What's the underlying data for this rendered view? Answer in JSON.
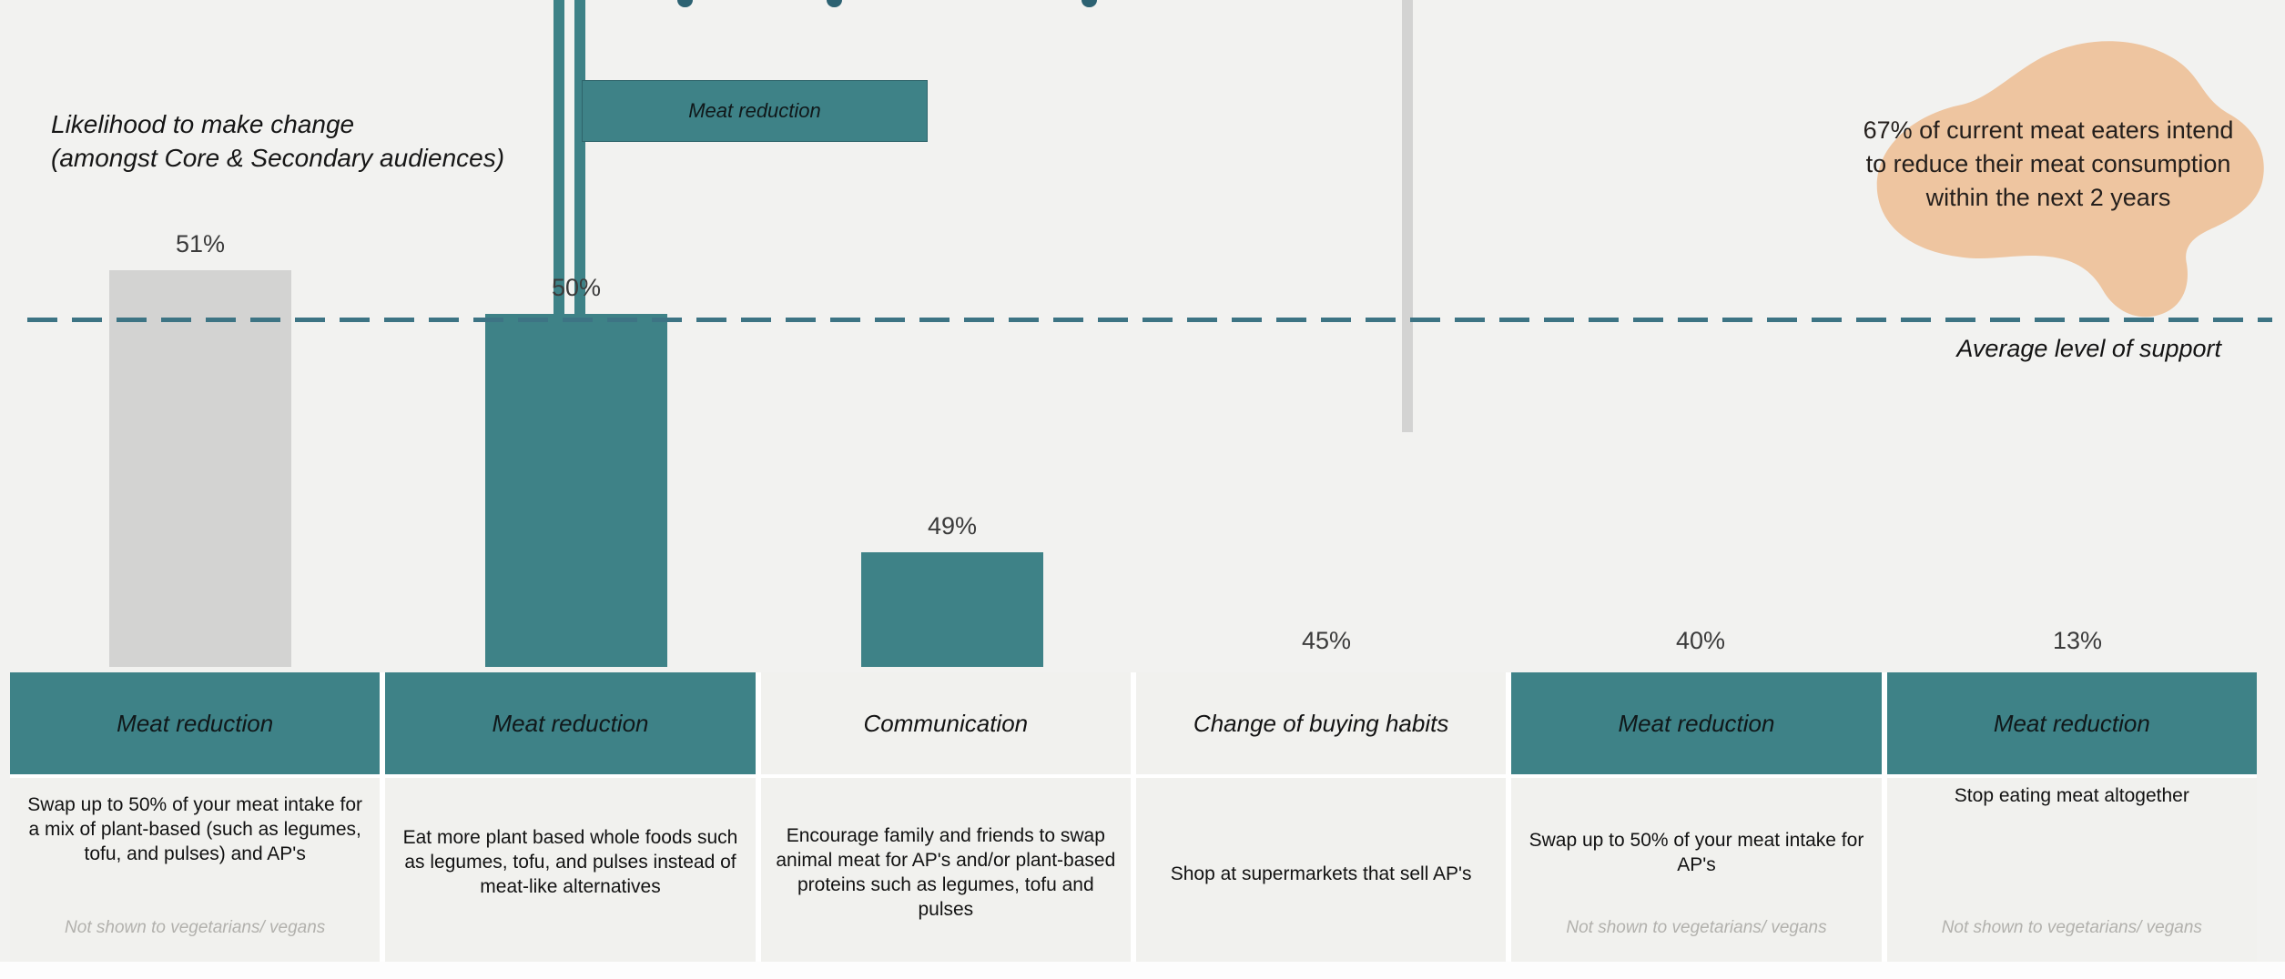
{
  "colors": {
    "page_bg": "#f2f2f0",
    "teal": "#3e8287",
    "bar_gray": "#d3d3d2",
    "blob_peach": "#eec5a0",
    "dash_line": "#3d7484",
    "title_remnant": "#2d6272"
  },
  "subtitle": {
    "line1": "Likelihood to make change",
    "line2": "(amongst Core & Secondary audiences)"
  },
  "legend": {
    "label": "Meat reduction"
  },
  "callout": {
    "text": "67% of current meat eaters intend to reduce their meat consumption within the next 2 years"
  },
  "average_line": {
    "label": "Average level of support",
    "value_pct": 40
  },
  "chart_data": {
    "type": "bar",
    "title": "Likelihood to make change (amongst Core & Secondary audiences)",
    "categories": [
      "Meat reduction",
      "Meat reduction",
      "Communication",
      "Change of buying habits",
      "Meat reduction",
      "Meat reduction"
    ],
    "values": [
      51,
      50,
      49,
      45,
      40,
      13
    ],
    "value_labels": [
      "51%",
      "50%",
      "49%",
      "45%",
      "40%",
      "13%"
    ],
    "series_colors": [
      "#3e8287",
      "#3e8287",
      "#d3d3d2",
      "#d3d3d2",
      "#3e8287",
      "#3e8287"
    ],
    "unit": "%",
    "ylim": [
      0,
      55
    ],
    "grid": false,
    "legend_entries": [
      "Meat reduction"
    ],
    "reference_line": {
      "label": "Average level of support",
      "value": 40,
      "style": "dashed"
    }
  },
  "columns": [
    {
      "header": "Meat reduction",
      "description": "Swap up to 50% of your meat intake for a mix of plant-based (such as legumes, tofu, and pulses) and AP's",
      "note": "Not shown to vegetarians/ vegans"
    },
    {
      "header": "Meat reduction",
      "description": "Eat more plant based whole foods such as legumes, tofu, and pulses instead of meat-like alternatives",
      "note": ""
    },
    {
      "header": "Communication",
      "description": "Encourage family and friends to swap animal meat for AP's and/or plant-based proteins such as legumes, tofu and pulses",
      "note": ""
    },
    {
      "header": "Change of buying habits",
      "description": "Shop at supermarkets that sell AP's",
      "note": ""
    },
    {
      "header": "Meat reduction",
      "description": "Swap up to 50% of your meat intake for AP's",
      "note": "Not shown to vegetarians/ vegans"
    },
    {
      "header": "Meat reduction",
      "description": "Stop eating meat altogether",
      "note": "Not shown to vegetarians/ vegans"
    }
  ]
}
